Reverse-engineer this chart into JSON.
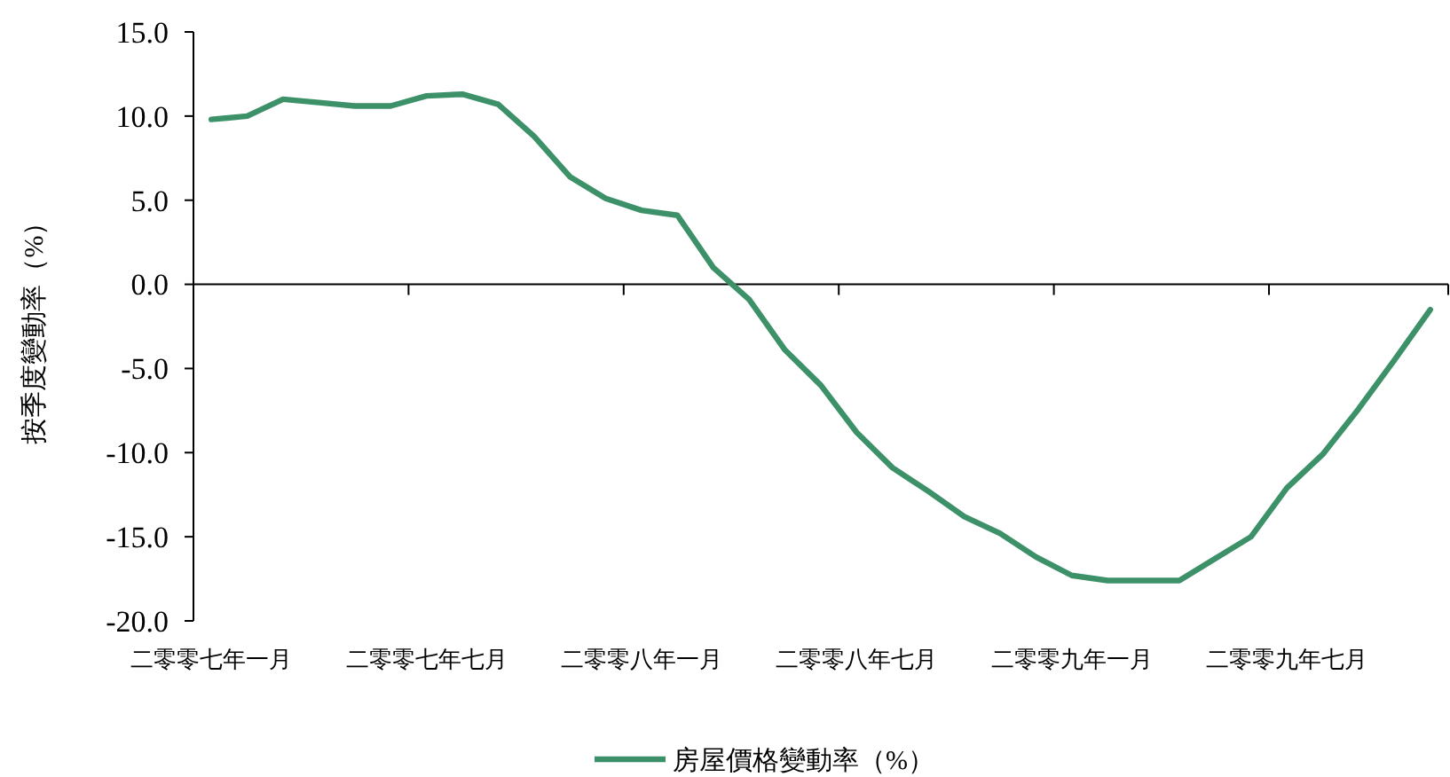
{
  "chart_data": {
    "type": "line",
    "categories": [
      "二零零七年一月",
      null,
      null,
      null,
      null,
      null,
      "二零零七年七月",
      null,
      null,
      null,
      null,
      null,
      "二零零八年一月",
      null,
      null,
      null,
      null,
      null,
      "二零零八年七月",
      null,
      null,
      null,
      null,
      null,
      "二零零九年一月",
      null,
      null,
      null,
      null,
      null,
      "二零零九年七月",
      null,
      null,
      null,
      null
    ],
    "series": [
      {
        "name": "房屋價格變動率（%）",
        "color": "#3d9169",
        "values": [
          9.8,
          10.0,
          11.0,
          10.8,
          10.6,
          10.6,
          11.2,
          11.3,
          10.7,
          8.8,
          6.4,
          5.1,
          4.4,
          4.1,
          1.0,
          -0.9,
          -3.9,
          -6.0,
          -8.8,
          -10.9,
          -12.3,
          -13.8,
          -14.8,
          -16.2,
          -17.3,
          -17.6,
          -17.6,
          -17.6,
          -16.3,
          -15.0,
          -12.1,
          -10.1,
          -7.4,
          -4.5,
          -1.5
        ]
      }
    ],
    "ylabel": "按季度變動率（%）",
    "ylim": [
      -20,
      15
    ],
    "yticks": [
      {
        "value": -20,
        "label": "-20.0"
      },
      {
        "value": -15,
        "label": "-15.0"
      },
      {
        "value": -10,
        "label": "-10.0"
      },
      {
        "value": -5,
        "label": "-5.0"
      },
      {
        "value": 0,
        "label": "0.0"
      },
      {
        "value": 5,
        "label": "5.0"
      },
      {
        "value": 10,
        "label": "10.0"
      },
      {
        "value": 15,
        "label": "15.0"
      }
    ],
    "legend": "bottom",
    "marker": "none",
    "line_style": "solid"
  }
}
